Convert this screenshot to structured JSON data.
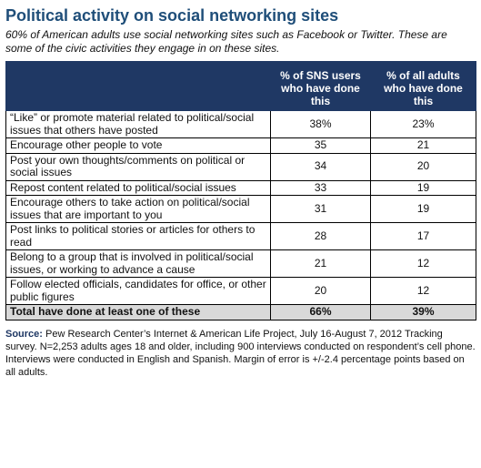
{
  "title": "Political activity on social networking sites",
  "subtitle": "60% of American adults use social networking sites such as Facebook or Twitter. These are some of the civic activities they engage in on these sites.",
  "colors": {
    "title": "#1f4e79",
    "header_bg": "#1f3864",
    "total_bg": "#d9d9d9"
  },
  "chart_data": {
    "type": "table",
    "columns": [
      "",
      "% of SNS users who have done this",
      "% of all adults who have done this"
    ],
    "rows": [
      {
        "label": "“Like” or promote material related to political/social issues that others have posted",
        "sns": "38%",
        "all": "23%"
      },
      {
        "label": "Encourage other people to vote",
        "sns": "35",
        "all": "21"
      },
      {
        "label": "Post your own thoughts/comments on political or social issues",
        "sns": "34",
        "all": "20"
      },
      {
        "label": "Repost content related to political/social issues",
        "sns": "33",
        "all": "19"
      },
      {
        "label": "Encourage others to take action on political/social issues that are important to you",
        "sns": "31",
        "all": "19"
      },
      {
        "label": "Post links to political stories or articles for others to read",
        "sns": "28",
        "all": "17"
      },
      {
        "label": "Belong to a group that is involved in political/social issues, or working to advance a cause",
        "sns": "21",
        "all": "12"
      },
      {
        "label": "Follow elected officials, candidates for office, or other public figures",
        "sns": "20",
        "all": "12"
      }
    ],
    "total": {
      "label": "Total have done at least one of these",
      "sns": "66%",
      "all": "39%"
    }
  },
  "source": {
    "label": "Source:",
    "text": " Pew Research Center’s Internet & American Life Project, July 16-August 7, 2012 Tracking survey. N=2,253 adults ages 18 and older, including 900 interviews conducted on respondent’s cell phone.  Interviews were conducted in English and Spanish. Margin of error is +/-2.4 percentage points based on all adults."
  }
}
